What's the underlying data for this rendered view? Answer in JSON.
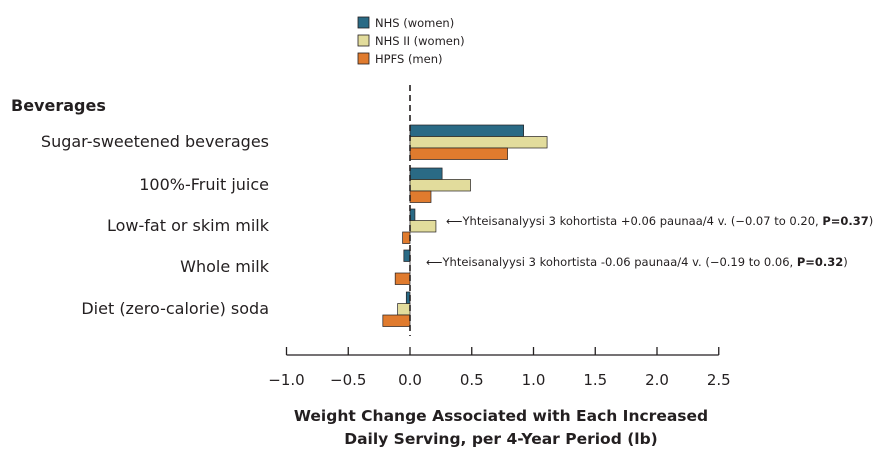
{
  "chart_data": {
    "type": "bar",
    "orientation": "horizontal",
    "section_heading": "Beverages",
    "categories": [
      "Sugar-sweetened beverages",
      "100%-Fruit juice",
      "Low-fat or skim milk",
      "Whole milk",
      "Diet (zero-calorie) soda"
    ],
    "series": [
      {
        "name": "NHS (women)",
        "color": "#2a6a85",
        "values": [
          0.92,
          0.26,
          0.04,
          -0.05,
          -0.03
        ]
      },
      {
        "name": "NHS II (women)",
        "color": "#e2dc9c",
        "values": [
          1.11,
          0.49,
          0.21,
          0.0,
          -0.1
        ]
      },
      {
        "name": "HPFS (men)",
        "color": "#e07b2e",
        "values": [
          0.79,
          0.17,
          -0.06,
          -0.12,
          -0.22
        ]
      }
    ],
    "xlabel_line1": "Weight Change Associated with Each Increased",
    "xlabel_line2": "Daily Serving, per 4-Year Period (lb)",
    "xlim": [
      -1.0,
      2.5
    ],
    "xticks": [
      -1.0,
      -0.5,
      0.0,
      0.5,
      1.0,
      1.5,
      2.0,
      2.5
    ],
    "xtick_labels": [
      "−1.0",
      "−0.5",
      "0.0",
      "0.5",
      "1.0",
      "1.5",
      "2.0",
      "2.5"
    ],
    "zero_line": "dashed",
    "legend_position": "top-center",
    "annotations": [
      {
        "category_index": 2,
        "arrow": "⟵",
        "text": "Yhteisanalyysi 3 kohortista +0.06 paunaa/4 v. (−0.07 to 0.20, ",
        "bold": "P=0.37",
        "close": ")"
      },
      {
        "category_index": 3,
        "arrow": "⟵",
        "text": "Yhteisanalyysi 3 kohortista -0.06 paunaa/4 v. (−0.19 to 0.06, ",
        "bold": "P=0.32",
        "close": ")"
      }
    ]
  }
}
